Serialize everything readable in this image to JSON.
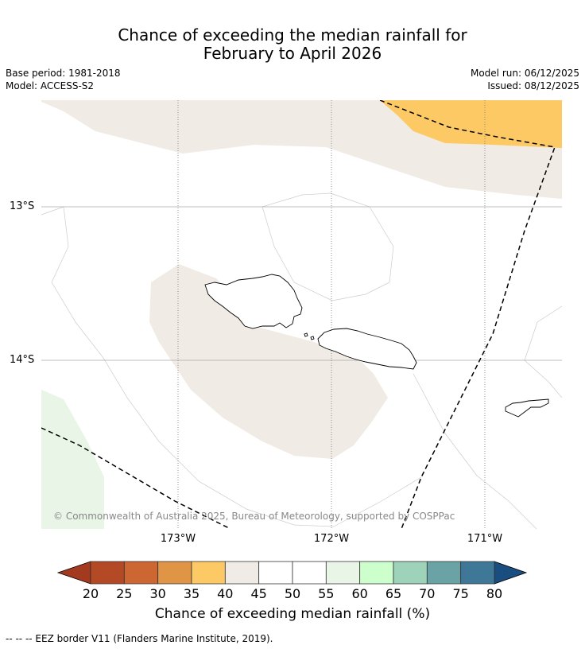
{
  "title": {
    "line1": "Chance of exceeding the median rainfall for",
    "line2": "February to April 2026"
  },
  "meta": {
    "base_period": "Base period: 1981-2018",
    "model": "Model: ACCESS-S2",
    "model_run": "Model run: 06/12/2025",
    "issued": "Issued: 08/12/2025"
  },
  "map": {
    "lat_labels": [
      "13°S",
      "14°S"
    ],
    "lon_labels": [
      "173°W",
      "172°W",
      "171°W"
    ],
    "copyright": "© Commonwealth of Australia 2025, Bureau of Meteorology, supported by COSPPac"
  },
  "colorbar": {
    "ticks": [
      "20",
      "25",
      "30",
      "35",
      "40",
      "45",
      "50",
      "55",
      "60",
      "65",
      "70",
      "75",
      "80"
    ],
    "colors": [
      "#b34a25",
      "#cc6633",
      "#e09445",
      "#fdc965",
      "#f0ebe5",
      "#ffffff",
      "#ffffff",
      "#e9f5e6",
      "#ccffcc",
      "#9ed3ba",
      "#6aa3a5",
      "#3f7799"
    ],
    "under_color": "#a33a20",
    "over_color": "#1a4d80",
    "label": "Chance of exceeding median rainfall (%)"
  },
  "legend": {
    "eez_text": "--  --  -- EEZ border V11 (Flanders Marine Institute, 2019)."
  }
}
